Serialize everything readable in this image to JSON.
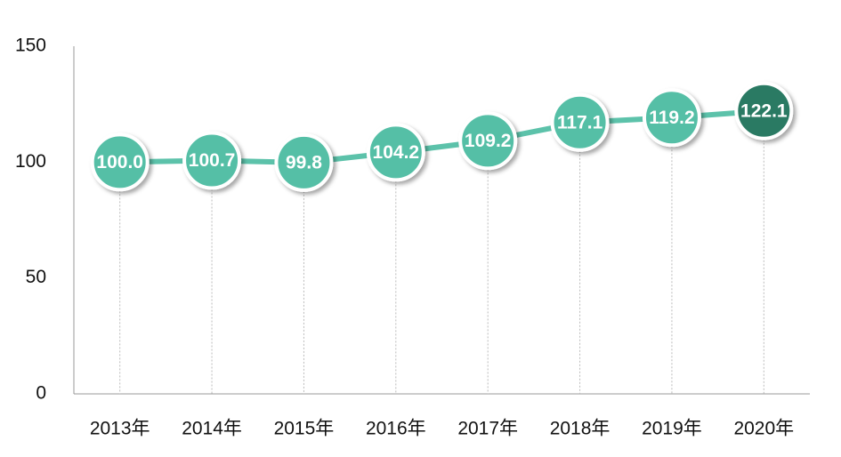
{
  "chart_data": {
    "type": "line",
    "categories": [
      "2013年",
      "2014年",
      "2015年",
      "2016年",
      "2017年",
      "2018年",
      "2019年",
      "2020年"
    ],
    "series": [
      {
        "color": "#5cc2aa",
        "values": [
          100,
          100.7,
          99.8,
          104.2,
          109.2,
          117.1,
          119.2,
          122.1
        ],
        "value_labels": [
          "100.0",
          "100.7",
          "99.8",
          "104.2",
          "109.2",
          "117.1",
          "119.2",
          "122.1"
        ],
        "point_colors": [
          "#55bfa6",
          "#55bfa6",
          "#55bfa6",
          "#55bfa6",
          "#55bfa6",
          "#55bfa6",
          "#55bfa6",
          "#2b7a64"
        ]
      }
    ],
    "ylim": [
      0,
      150
    ],
    "yticks": [
      0,
      50,
      100,
      150
    ]
  }
}
